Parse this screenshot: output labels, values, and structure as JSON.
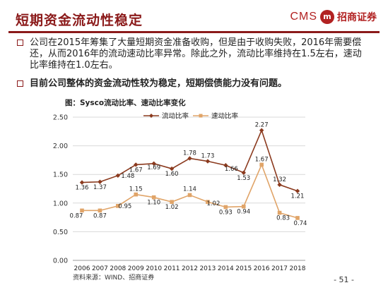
{
  "header": {
    "title": "短期资金流动性稳定",
    "logo_cms": "CMS",
    "logo_mark": "m",
    "logo_name": "招商证券"
  },
  "bullets": [
    "公司在2015年筹集了大量短期资金准备收购，但是由于收购失败，2016年需要偿还，从而2016年的流动速动比率异常。除此之外，流动比率维持在1.5左右，速动比率维持在1.0左右。",
    "目前公司整体的资金流动性较为稳定，短期偿债能力没有问题。"
  ],
  "chart_data": {
    "type": "line",
    "title": "图：Sysco流动比率、速动比率变化",
    "categories": [
      "2006",
      "2007",
      "2008",
      "2009",
      "2010",
      "2011",
      "2012",
      "2013",
      "2014",
      "2015",
      "2016",
      "2017",
      "2018"
    ],
    "ylim": [
      0,
      2.5
    ],
    "yticks": [
      "0.00",
      "0.50",
      "1.00",
      "1.50",
      "2.00",
      "2.50"
    ],
    "grid": true,
    "legend_position": "top",
    "series": [
      {
        "name": "流动比率",
        "color": "#8b3a1e",
        "values": [
          1.36,
          1.37,
          1.48,
          1.67,
          1.69,
          1.6,
          1.78,
          1.73,
          1.66,
          1.53,
          2.27,
          1.32,
          1.21
        ],
        "labels": [
          "1.36",
          "1.37",
          "1.48",
          "1.67",
          "1.69",
          "1.60",
          "1.78",
          "1.73",
          "1.66",
          "1.53",
          "2.27",
          "1.32",
          "1.21"
        ]
      },
      {
        "name": "速动比率",
        "color": "#e0a468",
        "values": [
          0.87,
          0.87,
          0.95,
          1.15,
          1.1,
          1.02,
          1.14,
          1.02,
          0.93,
          0.94,
          1.67,
          0.83,
          0.74
        ],
        "labels": [
          "0.87",
          "0.87",
          "0.95",
          "1.15",
          "1.10",
          "1.02",
          "1.14",
          "1.02",
          "0.93",
          "0.94",
          "1.67",
          "0.83",
          "0.74"
        ]
      }
    ]
  },
  "source": "资料来源：WIND、招商证券",
  "page_number": "- 51 -"
}
